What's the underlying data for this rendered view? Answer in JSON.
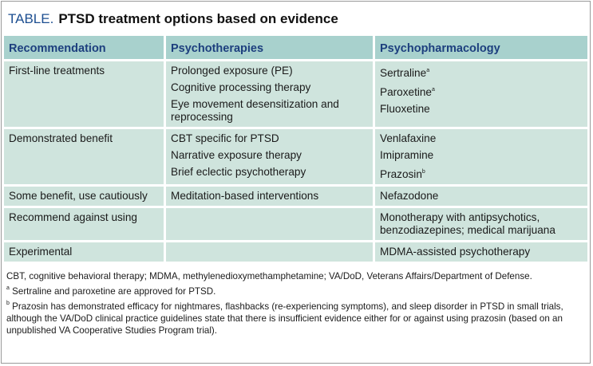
{
  "title": {
    "label": "TABLE.",
    "text": "PTSD treatment options based on evidence"
  },
  "table": {
    "header": [
      "Recommendation",
      "Psychotherapies",
      "Psychopharmacology"
    ],
    "rows": [
      [
        [
          "First-line treatments"
        ],
        [
          "Prolonged exposure (PE)",
          "Cognitive processing therapy",
          "Eye movement desensitization and reprocessing"
        ],
        [
          {
            "text": "Sertraline",
            "sup": "a"
          },
          {
            "text": "Paroxetine",
            "sup": "a"
          },
          "Fluoxetine"
        ]
      ],
      [
        [
          "Demonstrated benefit"
        ],
        [
          "CBT specific for PTSD",
          "Narrative exposure therapy",
          "Brief eclectic psychotherapy"
        ],
        [
          "Venlafaxine",
          "Imipramine",
          {
            "text": "Prazosin",
            "sup": "b"
          }
        ]
      ],
      [
        [
          "Some benefit, use cautiously"
        ],
        [
          "Meditation-based interventions"
        ],
        [
          "Nefazodone"
        ]
      ],
      [
        [
          "Recommend against using"
        ],
        [],
        [
          "Monotherapy with antipsychotics, benzodiazepines; medical marijuana"
        ]
      ],
      [
        [
          "Experimental"
        ],
        [],
        [
          "MDMA-assisted psychotherapy"
        ]
      ]
    ]
  },
  "footnotes": [
    "CBT, cognitive behavioral therapy; MDMA, methylenedioxymethamphetamine; VA/DoD, Veterans Affairs/Department of Defense.",
    {
      "sup": "a",
      "text": "Sertraline and paroxetine are approved for PTSD."
    },
    {
      "sup": "b",
      "text": "Prazosin has demonstrated efficacy for nightmares, flashbacks (re-experiencing symptoms), and sleep disorder in PTSD in small trials, although the VA/DoD clinical practice guidelines state that there is insufficient evidence either for or against using prazosin (based on an unpublished VA Cooperative Studies Program trial)."
    }
  ]
}
